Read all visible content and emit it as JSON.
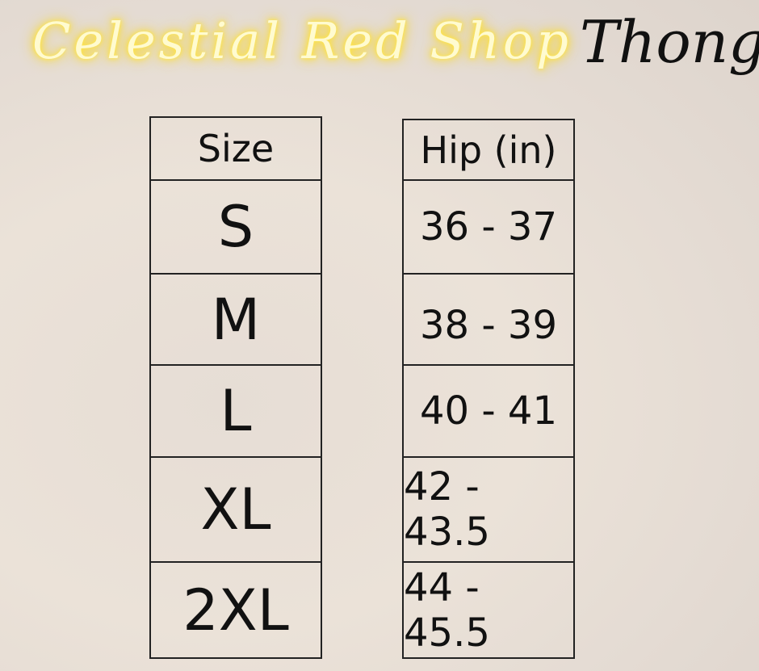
{
  "brand": "Celestial Red Shop",
  "product": "Thong",
  "table": {
    "headers": [
      "Size",
      "Hip (in)"
    ],
    "rows": [
      {
        "size": "S",
        "hip": "36 - 37"
      },
      {
        "size": "M",
        "hip": "38 - 39"
      },
      {
        "size": "L",
        "hip": "40 - 41"
      },
      {
        "size": "XL",
        "hip": "42 - 43.5"
      },
      {
        "size": "2XL",
        "hip": "44 - 45.5"
      }
    ]
  }
}
